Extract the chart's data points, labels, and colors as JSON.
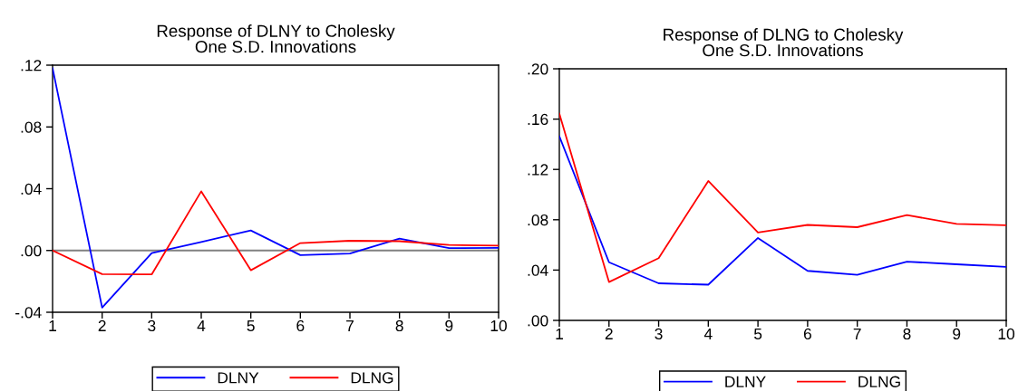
{
  "chart_data": [
    {
      "type": "line",
      "title": "Response of DLNY to Cholesky\nOne S.D. Innovations",
      "x": [
        1,
        2,
        3,
        4,
        5,
        6,
        7,
        8,
        9,
        10
      ],
      "xlim": [
        1,
        10
      ],
      "xticks": [
        1,
        2,
        3,
        4,
        5,
        6,
        7,
        8,
        9,
        10
      ],
      "ylim": [
        -0.04,
        0.12
      ],
      "yticks": [
        {
          "value": -0.04,
          "label": "-.04"
        },
        {
          "value": 0,
          "label": ".00"
        },
        {
          "value": 0.04,
          "label": ".04"
        },
        {
          "value": 0.08,
          "label": ".08"
        },
        {
          "value": 0.12,
          "label": ".12"
        }
      ],
      "series": [
        {
          "name": "DLNY",
          "color": "#0000ff",
          "values": [
            0.118,
            -0.037,
            -0.0017,
            0.0055,
            0.013,
            -0.003,
            -0.002,
            0.0077,
            0.0015,
            0.0017
          ]
        },
        {
          "name": "DLNG",
          "color": "#ff0000",
          "values": [
            0.0,
            -0.0153,
            -0.0155,
            0.0383,
            -0.0128,
            0.0048,
            0.0063,
            0.006,
            0.0036,
            0.0031
          ]
        }
      ],
      "ref_lines": [
        {
          "axis": "y",
          "value": 0,
          "color": "#808080"
        }
      ],
      "legend": "bottom",
      "grid": false
    },
    {
      "type": "line",
      "title": "Response of DLNG to Cholesky\nOne S.D. Innovations",
      "x": [
        1,
        2,
        3,
        4,
        5,
        6,
        7,
        8,
        9,
        10
      ],
      "xlim": [
        1,
        10
      ],
      "xticks": [
        1,
        2,
        3,
        4,
        5,
        6,
        7,
        8,
        9,
        10
      ],
      "ylim": [
        0,
        0.2
      ],
      "yticks": [
        {
          "value": 0,
          "label": ".00"
        },
        {
          "value": 0.04,
          "label": ".04"
        },
        {
          "value": 0.08,
          "label": ".08"
        },
        {
          "value": 0.12,
          "label": ".12"
        },
        {
          "value": 0.16,
          "label": ".16"
        },
        {
          "value": 0.2,
          "label": ".20"
        }
      ],
      "series": [
        {
          "name": "DLNY",
          "color": "#0000ff",
          "values": [
            0.1463,
            0.0462,
            0.0295,
            0.0284,
            0.0655,
            0.0394,
            0.0362,
            0.0467,
            0.0446,
            0.0425
          ]
        },
        {
          "name": "DLNG",
          "color": "#ff0000",
          "values": [
            0.1643,
            0.0305,
            0.0495,
            0.1108,
            0.0699,
            0.0759,
            0.0741,
            0.0837,
            0.0767,
            0.0756
          ]
        }
      ],
      "legend": "bottom",
      "grid": false
    }
  ]
}
